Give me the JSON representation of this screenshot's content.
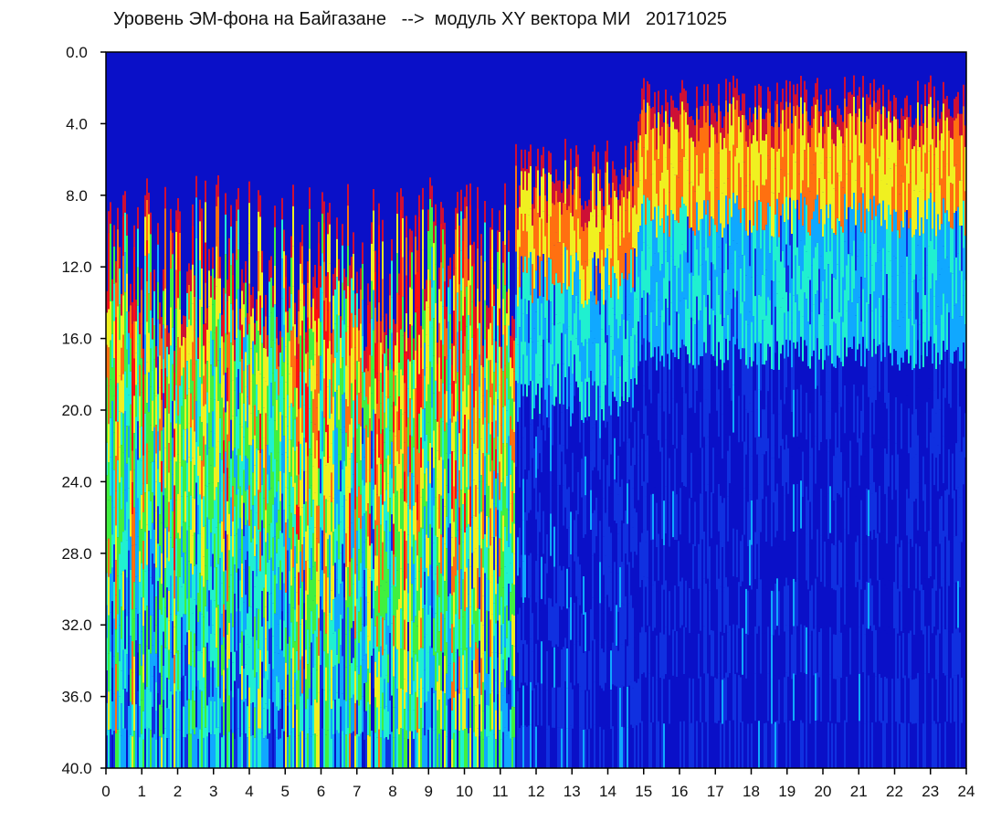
{
  "chart_data": {
    "type": "heatmap",
    "title": "Уровень ЭМ-фона на Байгазане   -->  модуль XY вектора МИ   20171025",
    "xlabel": "",
    "ylabel": "",
    "x_range": [
      0,
      24
    ],
    "y_range": [
      0.0,
      40.0
    ],
    "y_inverted": true,
    "x_ticks": [
      "0",
      "1",
      "2",
      "3",
      "4",
      "5",
      "6",
      "7",
      "8",
      "9",
      "10",
      "11",
      "12",
      "13",
      "14",
      "15",
      "16",
      "17",
      "18",
      "19",
      "20",
      "21",
      "22",
      "23",
      "24"
    ],
    "y_ticks": [
      "0.0",
      "4.0",
      "8.0",
      "12.0",
      "16.0",
      "20.0",
      "24.0",
      "28.0",
      "32.0",
      "36.0",
      "40.0"
    ],
    "colormap": [
      "#0a10c8",
      "#1030e0",
      "#10a8ff",
      "#20f0d0",
      "#40f040",
      "#f0f020",
      "#ff7010",
      "#ff1010"
    ],
    "grid": false
  }
}
